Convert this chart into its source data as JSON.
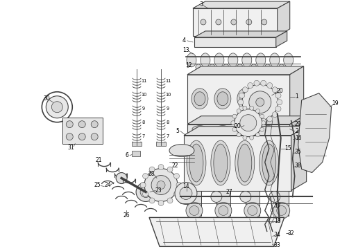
{
  "bg_color": "#ffffff",
  "line_color": "#404040",
  "label_color": "#000000",
  "figsize": [
    4.9,
    3.6
  ],
  "dpi": 100,
  "lw_main": 0.8,
  "lw_thin": 0.5,
  "lw_thick": 1.2
}
